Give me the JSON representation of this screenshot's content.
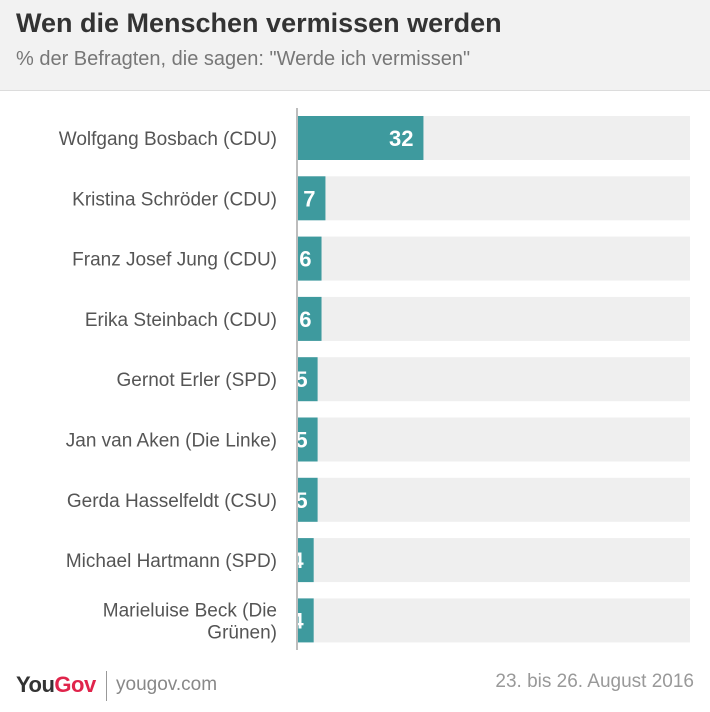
{
  "header": {
    "title": "Wen die Menschen vermissen werden",
    "subtitle": "% der Befragten, die sagen: \"Werde ich vermissen\""
  },
  "footer": {
    "logo_you": "You",
    "logo_gov": "Gov",
    "site": "yougov.com",
    "date": "23. bis 26. August 2016"
  },
  "colors": {
    "bar": "#3e9a9e",
    "track": "#efefef",
    "axis": "#bdbdbd",
    "label": "#555555",
    "value": "#ffffff",
    "logo_red": "#e0244b"
  },
  "chart_data": {
    "type": "bar",
    "orientation": "horizontal",
    "title": "Wen die Menschen vermissen werden",
    "subtitle": "% der Befragten, die sagen: \"Werde ich vermissen\"",
    "xlim": [
      0,
      100
    ],
    "grid": false,
    "categories": [
      [
        "Wolfgang Bosbach (CDU)"
      ],
      [
        "Kristina Schröder (CDU)"
      ],
      [
        "Franz Josef Jung (CDU)"
      ],
      [
        "Erika Steinbach (CDU)"
      ],
      [
        "Gernot Erler (SPD)"
      ],
      [
        "Jan van Aken (Die Linke)"
      ],
      [
        "Gerda Hasselfeldt (CSU)"
      ],
      [
        "Michael Hartmann (SPD)"
      ],
      [
        "Marieluise Beck (Die",
        "Grünen)"
      ]
    ],
    "values": [
      32,
      7,
      6,
      6,
      5,
      5,
      5,
      4,
      4
    ]
  }
}
